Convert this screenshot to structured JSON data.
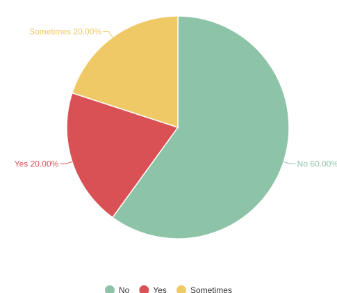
{
  "chart_data": {
    "type": "pie",
    "title": "",
    "slices": [
      {
        "name": "No",
        "value": 60,
        "label": "No 60.00%",
        "color": "#8dc3a7"
      },
      {
        "name": "Yes",
        "value": 20,
        "label": "Yes 20.00%",
        "color": "#d95155"
      },
      {
        "name": "Sometimes",
        "value": 20,
        "label": "Sometimes 20.00%",
        "color": "#eec966"
      }
    ],
    "start_angle": "12 o'clock",
    "direction": "clockwise",
    "legend": {
      "position": "bottom-center",
      "entries": [
        "No",
        "Yes",
        "Sometimes"
      ]
    }
  }
}
